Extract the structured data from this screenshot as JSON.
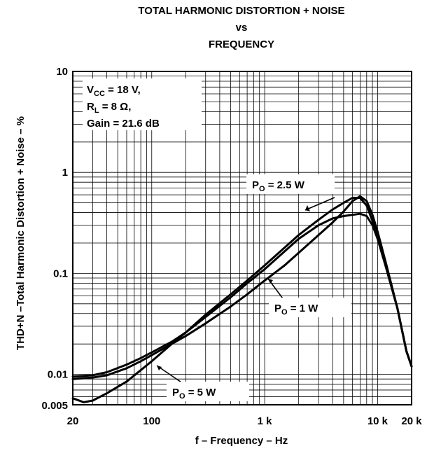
{
  "chart_data": {
    "type": "line",
    "title_lines": [
      "TOTAL HARMONIC DISTORTION + NOISE",
      "vs",
      "FREQUENCY"
    ],
    "xlabel": "f – Frequency – Hz",
    "ylabel": "THD+N –Total Harmonic Distortion + Noise – %",
    "x_scale": "log",
    "y_scale": "log",
    "xlim": [
      20,
      20000
    ],
    "ylim": [
      0.005,
      10
    ],
    "x_ticks": [
      {
        "value": 20,
        "label": "20"
      },
      {
        "value": 100,
        "label": "100"
      },
      {
        "value": 1000,
        "label": "1 k"
      },
      {
        "value": 10000,
        "label": "10 k"
      },
      {
        "value": 20000,
        "label": "20 k"
      }
    ],
    "y_ticks": [
      {
        "value": 10,
        "label": "10"
      },
      {
        "value": 1,
        "label": "1"
      },
      {
        "value": 0.1,
        "label": "0.1"
      },
      {
        "value": 0.01,
        "label": "0.01"
      },
      {
        "value": 0.005,
        "label": "0.005"
      }
    ],
    "grid": true,
    "conditions": [
      {
        "main": "V",
        "sub": "CC",
        "rest": " = 18 V,"
      },
      {
        "main": "R",
        "sub": "L",
        "rest": " = 8 Ω,"
      },
      {
        "main": "Gain = 21.6 dB",
        "sub": "",
        "rest": ""
      }
    ],
    "series": [
      {
        "name": {
          "main": "P",
          "sub": "O",
          "rest": " = 2.5 W"
        },
        "x": [
          20,
          30,
          40,
          60,
          80,
          100,
          150,
          200,
          300,
          500,
          700,
          1000,
          1500,
          2000,
          3000,
          4000,
          5000,
          6000,
          7000,
          8000,
          9000,
          10000,
          12000,
          15000,
          18000,
          20000
        ],
        "y": [
          0.0095,
          0.0098,
          0.0105,
          0.0125,
          0.0145,
          0.0165,
          0.021,
          0.026,
          0.037,
          0.058,
          0.08,
          0.11,
          0.165,
          0.22,
          0.3,
          0.35,
          0.37,
          0.38,
          0.39,
          0.37,
          0.3,
          0.22,
          0.11,
          0.045,
          0.017,
          0.012
        ]
      },
      {
        "name": {
          "main": "P",
          "sub": "O",
          "rest": " = 1 W"
        },
        "x": [
          20,
          30,
          40,
          60,
          80,
          100,
          150,
          200,
          300,
          500,
          700,
          1000,
          1500,
          2000,
          3000,
          4000,
          5000,
          6000,
          7000,
          8000,
          9000,
          10000,
          12000,
          15000,
          18000,
          20000
        ],
        "y": [
          0.009,
          0.0093,
          0.0098,
          0.0115,
          0.0135,
          0.0155,
          0.02,
          0.024,
          0.032,
          0.047,
          0.062,
          0.085,
          0.12,
          0.16,
          0.24,
          0.32,
          0.41,
          0.52,
          0.58,
          0.52,
          0.38,
          0.26,
          0.12,
          0.045,
          0.017,
          0.012
        ]
      },
      {
        "name": {
          "main": "P",
          "sub": "O",
          "rest": " = 5 W"
        },
        "x": [
          20,
          25,
          30,
          40,
          60,
          80,
          100,
          150,
          200,
          300,
          500,
          700,
          1000,
          1500,
          2000,
          3000,
          4000,
          5000,
          6000,
          7000,
          8000,
          9000,
          10000,
          12000,
          15000,
          18000,
          20000
        ],
        "y": [
          0.0058,
          0.0053,
          0.0055,
          0.0065,
          0.0085,
          0.011,
          0.0135,
          0.02,
          0.026,
          0.039,
          0.062,
          0.085,
          0.12,
          0.18,
          0.24,
          0.34,
          0.43,
          0.5,
          0.56,
          0.56,
          0.47,
          0.33,
          0.24,
          0.11,
          0.045,
          0.017,
          0.012
        ]
      }
    ]
  }
}
